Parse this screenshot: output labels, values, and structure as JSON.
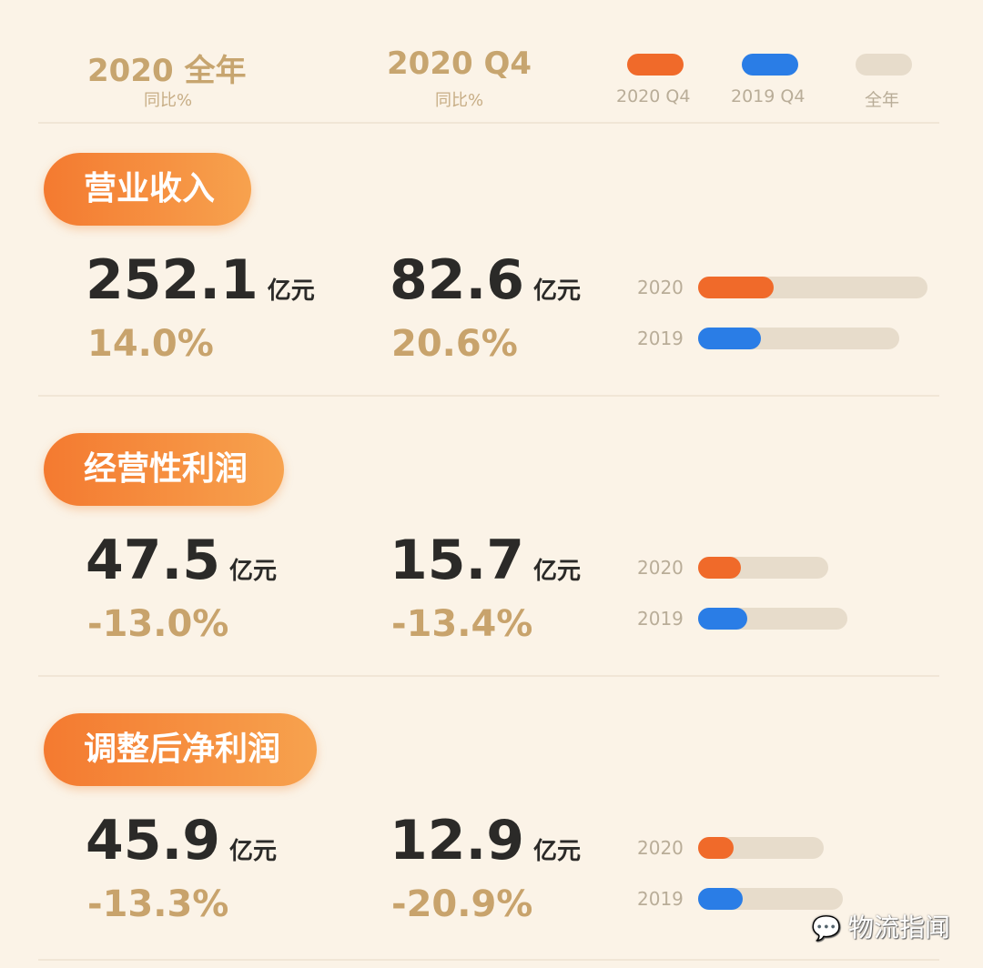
{
  "header": {
    "col1_title": "2020  全年",
    "col1_sub": "同比%",
    "col2_title": "2020  Q4",
    "col2_sub": "同比%"
  },
  "legend": [
    {
      "label": "2020 Q4",
      "color": "#f06a2a"
    },
    {
      "label": "2019 Q4",
      "color": "#2a7de6"
    },
    {
      "label": "全年",
      "color": "#e7dccb"
    }
  ],
  "unit": "亿元",
  "watermark": "物流指闻",
  "chart_data": {
    "type": "bar",
    "orientation": "horizontal",
    "note_series": [
      "Q4 value (colored fill)",
      "full year (gray track)"
    ],
    "metrics": [
      {
        "name": "营业收入",
        "full_year_2020": "252.1",
        "full_year_yoy": "14.0%",
        "q4_2020": "82.6",
        "q4_yoy": "20.6%",
        "bars": [
          {
            "year": "2020",
            "q4": 82.6,
            "full_year": 252.1
          },
          {
            "year": "2019",
            "q4": 68.5,
            "full_year": 221.1
          }
        ]
      },
      {
        "name": "经营性利润",
        "full_year_2020": "47.5",
        "full_year_yoy": "-13.0%",
        "q4_2020": "15.7",
        "q4_yoy": "-13.4%",
        "bars": [
          {
            "year": "2020",
            "q4": 15.7,
            "full_year": 47.5
          },
          {
            "year": "2019",
            "q4": 18.1,
            "full_year": 54.6
          }
        ]
      },
      {
        "name": "调整后净利润",
        "full_year_2020": "45.9",
        "full_year_yoy": "-13.3%",
        "q4_2020": "12.9",
        "q4_yoy": "-20.9%",
        "bars": [
          {
            "year": "2020",
            "q4": 12.9,
            "full_year": 45.9
          },
          {
            "year": "2019",
            "q4": 16.3,
            "full_year": 52.9
          }
        ]
      }
    ]
  }
}
